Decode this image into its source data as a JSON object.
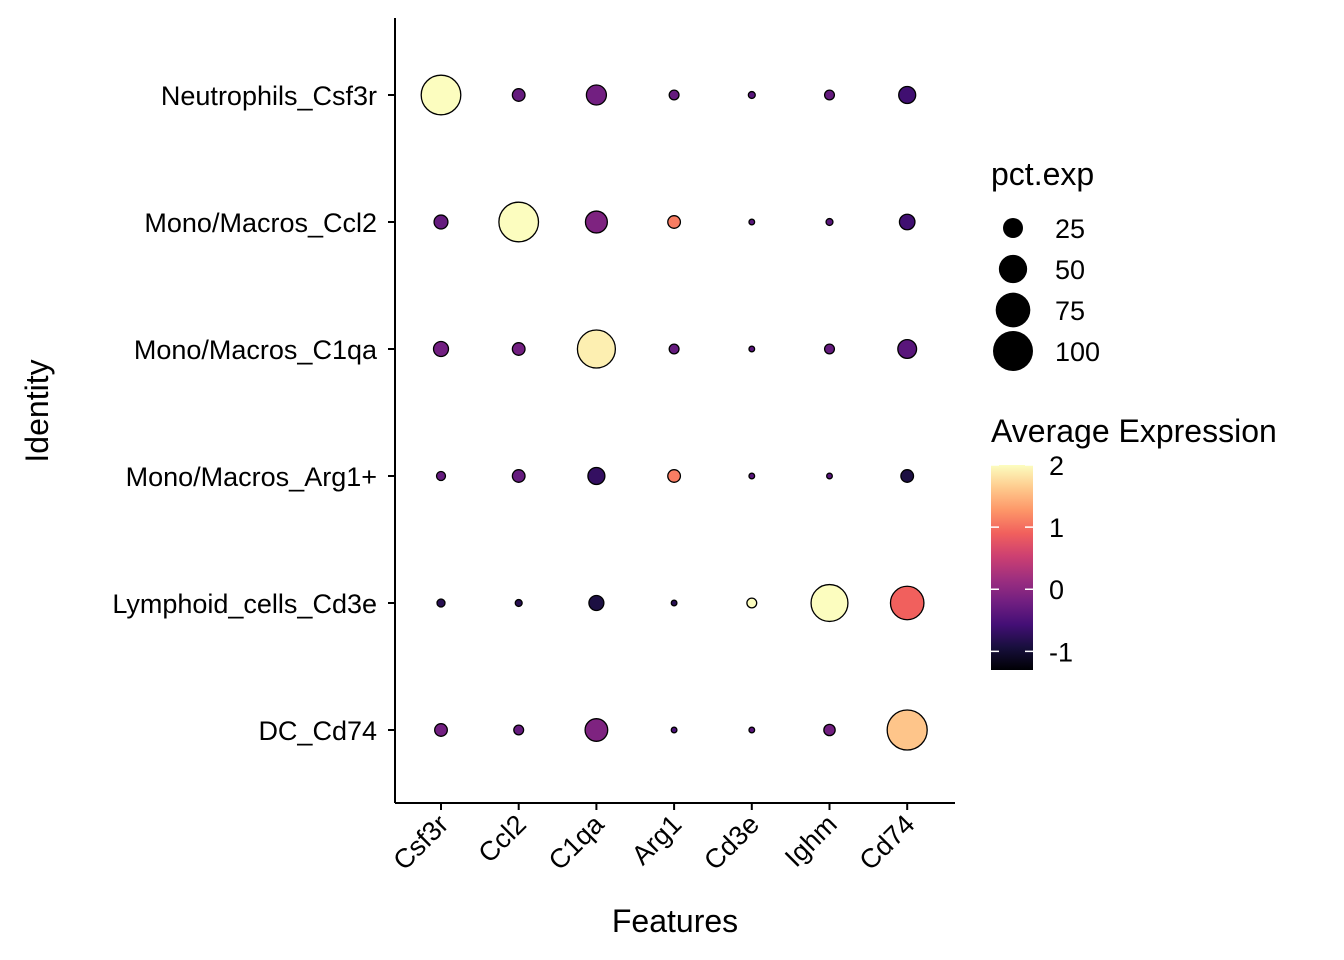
{
  "chart_data": {
    "type": "dotplot",
    "xlabel": "Features",
    "ylabel": "Identity",
    "features": [
      "Csf3r",
      "Ccl2",
      "C1qa",
      "Arg1",
      "Cd3e",
      "Ighm",
      "Cd74"
    ],
    "identities": [
      "Neutrophils_Csf3r",
      "Mono/Macros_Ccl2",
      "Mono/Macros_C1qa",
      "Mono/Macros_Arg1+",
      "Lymphoid_cells_Cd3e",
      "DC_Cd74"
    ],
    "points": [
      {
        "identity": "Neutrophils_Csf3r",
        "feature": "Csf3r",
        "pct_exp": 98,
        "avg_exp": 2.0
      },
      {
        "identity": "Neutrophils_Csf3r",
        "feature": "Ccl2",
        "pct_exp": 10,
        "avg_exp": -0.3
      },
      {
        "identity": "Neutrophils_Csf3r",
        "feature": "C1qa",
        "pct_exp": 25,
        "avg_exp": -0.2
      },
      {
        "identity": "Neutrophils_Csf3r",
        "feature": "Arg1",
        "pct_exp": 6,
        "avg_exp": -0.3
      },
      {
        "identity": "Neutrophils_Csf3r",
        "feature": "Cd3e",
        "pct_exp": 3,
        "avg_exp": -0.4
      },
      {
        "identity": "Neutrophils_Csf3r",
        "feature": "Ighm",
        "pct_exp": 6,
        "avg_exp": -0.3
      },
      {
        "identity": "Neutrophils_Csf3r",
        "feature": "Cd74",
        "pct_exp": 18,
        "avg_exp": -0.6
      },
      {
        "identity": "Mono/Macros_Ccl2",
        "feature": "Csf3r",
        "pct_exp": 12,
        "avg_exp": -0.3
      },
      {
        "identity": "Mono/Macros_Ccl2",
        "feature": "Ccl2",
        "pct_exp": 98,
        "avg_exp": 2.0
      },
      {
        "identity": "Mono/Macros_Ccl2",
        "feature": "C1qa",
        "pct_exp": 30,
        "avg_exp": -0.1
      },
      {
        "identity": "Mono/Macros_Ccl2",
        "feature": "Arg1",
        "pct_exp": 10,
        "avg_exp": 1.1
      },
      {
        "identity": "Mono/Macros_Ccl2",
        "feature": "Cd3e",
        "pct_exp": 2,
        "avg_exp": -0.4
      },
      {
        "identity": "Mono/Macros_Ccl2",
        "feature": "Ighm",
        "pct_exp": 3,
        "avg_exp": -0.4
      },
      {
        "identity": "Mono/Macros_Ccl2",
        "feature": "Cd74",
        "pct_exp": 15,
        "avg_exp": -0.6
      },
      {
        "identity": "Mono/Macros_C1qa",
        "feature": "Csf3r",
        "pct_exp": 14,
        "avg_exp": -0.2
      },
      {
        "identity": "Mono/Macros_C1qa",
        "feature": "Ccl2",
        "pct_exp": 10,
        "avg_exp": -0.2
      },
      {
        "identity": "Mono/Macros_C1qa",
        "feature": "C1qa",
        "pct_exp": 90,
        "avg_exp": 1.9
      },
      {
        "identity": "Mono/Macros_C1qa",
        "feature": "Arg1",
        "pct_exp": 6,
        "avg_exp": -0.3
      },
      {
        "identity": "Mono/Macros_C1qa",
        "feature": "Cd3e",
        "pct_exp": 2,
        "avg_exp": -0.4
      },
      {
        "identity": "Mono/Macros_C1qa",
        "feature": "Ighm",
        "pct_exp": 6,
        "avg_exp": -0.3
      },
      {
        "identity": "Mono/Macros_C1qa",
        "feature": "Cd74",
        "pct_exp": 22,
        "avg_exp": -0.4
      },
      {
        "identity": "Mono/Macros_Arg1+",
        "feature": "Csf3r",
        "pct_exp": 5,
        "avg_exp": -0.3
      },
      {
        "identity": "Mono/Macros_Arg1+",
        "feature": "Ccl2",
        "pct_exp": 10,
        "avg_exp": -0.3
      },
      {
        "identity": "Mono/Macros_Arg1+",
        "feature": "C1qa",
        "pct_exp": 18,
        "avg_exp": -0.7
      },
      {
        "identity": "Mono/Macros_Arg1+",
        "feature": "Arg1",
        "pct_exp": 10,
        "avg_exp": 1.1
      },
      {
        "identity": "Mono/Macros_Arg1+",
        "feature": "Cd3e",
        "pct_exp": 2,
        "avg_exp": -0.4
      },
      {
        "identity": "Mono/Macros_Arg1+",
        "feature": "Ighm",
        "pct_exp": 2,
        "avg_exp": -0.4
      },
      {
        "identity": "Mono/Macros_Arg1+",
        "feature": "Cd74",
        "pct_exp": 10,
        "avg_exp": -0.9
      },
      {
        "identity": "Lymphoid_cells_Cd3e",
        "feature": "Csf3r",
        "pct_exp": 4,
        "avg_exp": -0.8
      },
      {
        "identity": "Lymphoid_cells_Cd3e",
        "feature": "Ccl2",
        "pct_exp": 3,
        "avg_exp": -0.8
      },
      {
        "identity": "Lymphoid_cells_Cd3e",
        "feature": "C1qa",
        "pct_exp": 14,
        "avg_exp": -0.9
      },
      {
        "identity": "Lymphoid_cells_Cd3e",
        "feature": "Arg1",
        "pct_exp": 2,
        "avg_exp": -0.8
      },
      {
        "identity": "Lymphoid_cells_Cd3e",
        "feature": "Cd3e",
        "pct_exp": 6,
        "avg_exp": 2.0
      },
      {
        "identity": "Lymphoid_cells_Cd3e",
        "feature": "Ighm",
        "pct_exp": 85,
        "avg_exp": 2.0
      },
      {
        "identity": "Lymphoid_cells_Cd3e",
        "feature": "Cd74",
        "pct_exp": 70,
        "avg_exp": 0.9
      },
      {
        "identity": "DC_Cd74",
        "feature": "Csf3r",
        "pct_exp": 10,
        "avg_exp": -0.2
      },
      {
        "identity": "DC_Cd74",
        "feature": "Ccl2",
        "pct_exp": 6,
        "avg_exp": -0.3
      },
      {
        "identity": "DC_Cd74",
        "feature": "C1qa",
        "pct_exp": 32,
        "avg_exp": -0.1
      },
      {
        "identity": "DC_Cd74",
        "feature": "Arg1",
        "pct_exp": 2,
        "avg_exp": -0.5
      },
      {
        "identity": "DC_Cd74",
        "feature": "Cd3e",
        "pct_exp": 2,
        "avg_exp": -0.4
      },
      {
        "identity": "DC_Cd74",
        "feature": "Ighm",
        "pct_exp": 8,
        "avg_exp": -0.2
      },
      {
        "identity": "DC_Cd74",
        "feature": "Cd74",
        "pct_exp": 100,
        "avg_exp": 1.6
      }
    ],
    "size_legend": {
      "title": "pct.exp",
      "breaks": [
        25,
        50,
        75,
        100
      ],
      "labels": [
        "25",
        "50",
        "75",
        "100"
      ]
    },
    "color_legend": {
      "title": "Average Expression",
      "range": [
        -1.3,
        2.0
      ],
      "ticks": [
        -1,
        0,
        1,
        2
      ],
      "tick_labels": [
        "-1",
        "0",
        "1",
        "2"
      ],
      "palette": [
        "#000004",
        "#180f3d",
        "#440f76",
        "#721f81",
        "#9e2f7f",
        "#cd4071",
        "#f1605d",
        "#fd9668",
        "#feca8d",
        "#fcfdbf"
      ]
    },
    "legend_position": "right",
    "grid": false
  }
}
